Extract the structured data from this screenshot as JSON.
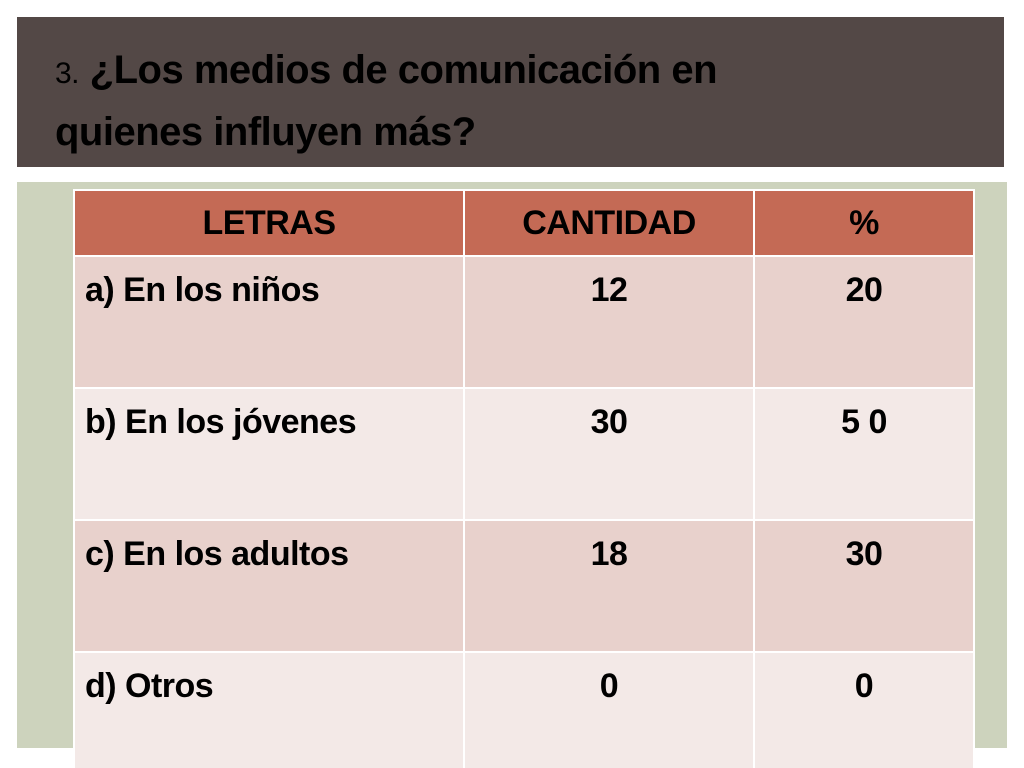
{
  "slide": {
    "title_number": "3.",
    "title_line1": "¿Los medios de comunicación  en",
    "title_line2": "quienes influyen más?"
  },
  "table": {
    "headers": [
      "LETRAS",
      "CANTIDAD",
      "%"
    ],
    "rows": [
      {
        "letra": "a) En los niños",
        "cantidad": "12",
        "porcentaje": "20"
      },
      {
        "letra": "b) En los jóvenes",
        "cantidad": "30",
        "porcentaje": "5 0"
      },
      {
        "letra": "c) En los adultos",
        "cantidad": "18",
        "porcentaje": "30"
      },
      {
        "letra": "d) Otros",
        "cantidad": "0",
        "porcentaje": "0"
      }
    ]
  },
  "colors": {
    "title_bar": "#534846",
    "panel": "#cdd3bd",
    "header": "#c46a55",
    "row_odd": "#e8d1cc",
    "row_even": "#f3e9e7"
  }
}
